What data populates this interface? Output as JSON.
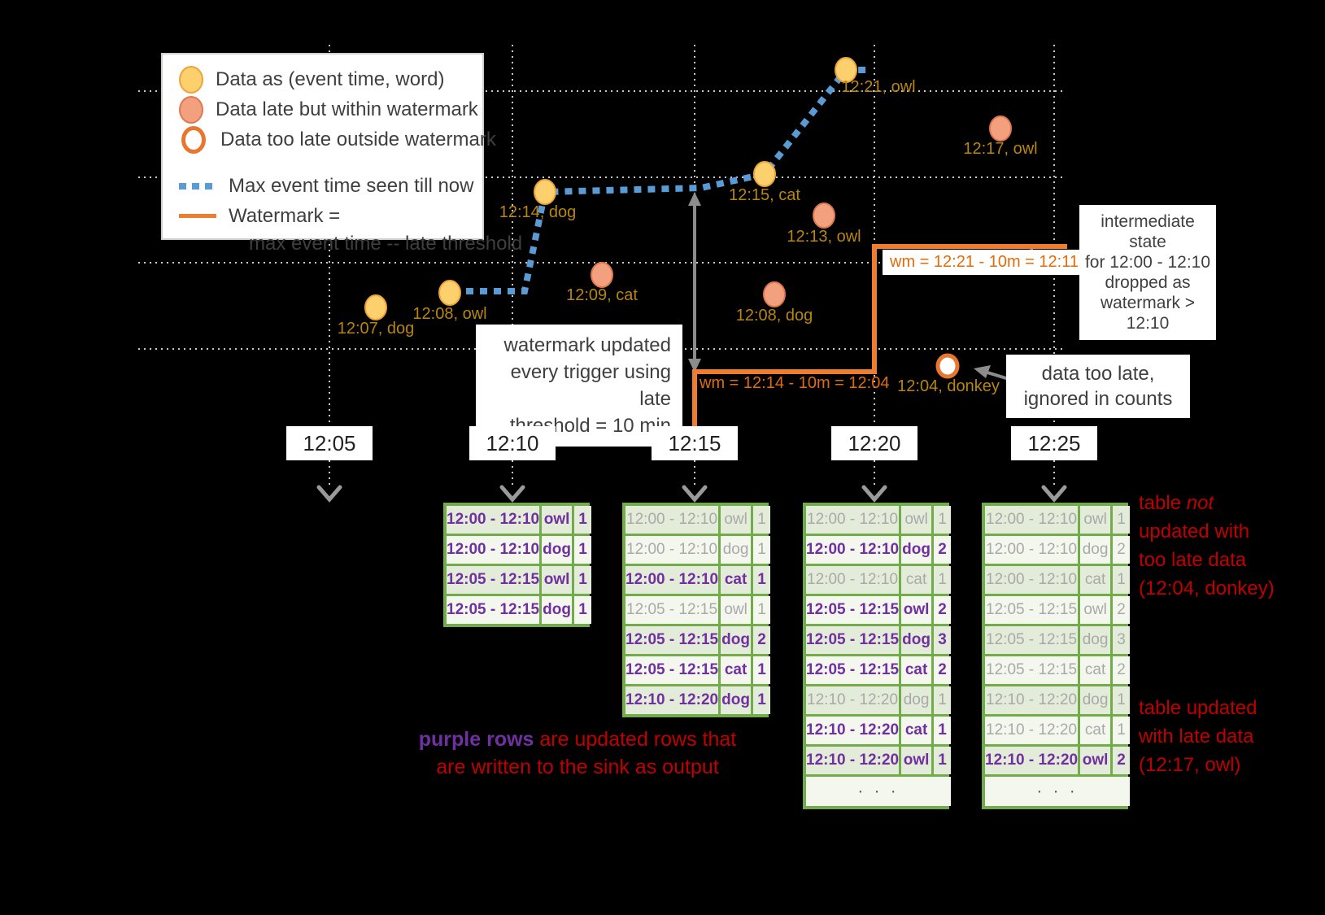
{
  "legend": {
    "items": [
      {
        "icon": "on-time-dot",
        "label": "Data as (event time, word)"
      },
      {
        "icon": "late-dot",
        "label": "Data late but within watermark"
      },
      {
        "icon": "too-late-ring",
        "label": "Data too late outside watermark"
      }
    ],
    "max_event_label": "Max event time seen till now",
    "watermark_label": "Watermark =",
    "watermark_label2": "max event time -- late threshold"
  },
  "axis_ticks": [
    "12:05",
    "12:10",
    "12:15",
    "12:20",
    "12:25"
  ],
  "points": [
    {
      "label": "12:07, dog",
      "type": "on-time"
    },
    {
      "label": "12:08, owl",
      "type": "on-time"
    },
    {
      "label": "12:14, dog",
      "type": "on-time"
    },
    {
      "label": "12:09, cat",
      "type": "late"
    },
    {
      "label": "12:15, cat",
      "type": "on-time"
    },
    {
      "label": "12:13, owl",
      "type": "late"
    },
    {
      "label": "12:08, dog",
      "type": "late"
    },
    {
      "label": "12:21, owl",
      "type": "on-time"
    },
    {
      "label": "12:17, owl",
      "type": "late"
    },
    {
      "label": "12:04, donkey",
      "type": "too-late"
    }
  ],
  "watermark_labels": {
    "wm1": "wm = 12:14 - 10m = 12:04",
    "wm2": "wm = 12:21 - 10m = 12:11"
  },
  "callouts": {
    "watermark_updated": {
      "lines": [
        "watermark updated",
        "every trigger using late",
        "threshold = 10 min"
      ]
    },
    "intermediate": {
      "lines": [
        "intermediate state",
        "for 12:00 - 12:10",
        "dropped as",
        "watermark > 12:10"
      ]
    },
    "too_late": {
      "lines": [
        "data too late,",
        "ignored in counts"
      ]
    }
  },
  "annotations": {
    "not_updated": {
      "l1a": "table ",
      "l1b": "not",
      "l2": "updated with",
      "l3": "too late data",
      "l4": "(12:04, donkey)"
    },
    "updated": {
      "l1": "table updated",
      "l2": "with late data",
      "l3": "(12:17, owl)"
    },
    "purple_note": {
      "purple": "purple rows",
      "rest1": " are updated rows that",
      "rest2": "are written to the sink as output"
    }
  },
  "ellipsis_label": "· · ·",
  "tables": [
    {
      "tick": "12:10",
      "ellipsis": false,
      "rows": [
        {
          "window": "12:00 - 12:10",
          "word": "owl",
          "count": "1",
          "updated": true
        },
        {
          "window": "12:00 - 12:10",
          "word": "dog",
          "count": "1",
          "updated": true
        },
        {
          "window": "12:05 - 12:15",
          "word": "owl",
          "count": "1",
          "updated": true
        },
        {
          "window": "12:05 - 12:15",
          "word": "dog",
          "count": "1",
          "updated": true
        }
      ]
    },
    {
      "tick": "12:15",
      "ellipsis": false,
      "rows": [
        {
          "window": "12:00 - 12:10",
          "word": "owl",
          "count": "1",
          "updated": false
        },
        {
          "window": "12:00 - 12:10",
          "word": "dog",
          "count": "1",
          "updated": false
        },
        {
          "window": "12:00 - 12:10",
          "word": "cat",
          "count": "1",
          "updated": true
        },
        {
          "window": "12:05 - 12:15",
          "word": "owl",
          "count": "1",
          "updated": false
        },
        {
          "window": "12:05 - 12:15",
          "word": "dog",
          "count": "2",
          "updated": true
        },
        {
          "window": "12:05 - 12:15",
          "word": "cat",
          "count": "1",
          "updated": true
        },
        {
          "window": "12:10 - 12:20",
          "word": "dog",
          "count": "1",
          "updated": true
        }
      ]
    },
    {
      "tick": "12:20",
      "ellipsis": true,
      "rows": [
        {
          "window": "12:00 - 12:10",
          "word": "owl",
          "count": "1",
          "updated": false
        },
        {
          "window": "12:00 - 12:10",
          "word": "dog",
          "count": "2",
          "updated": true
        },
        {
          "window": "12:00 - 12:10",
          "word": "cat",
          "count": "1",
          "updated": false
        },
        {
          "window": "12:05 - 12:15",
          "word": "owl",
          "count": "2",
          "updated": true
        },
        {
          "window": "12:05 - 12:15",
          "word": "dog",
          "count": "3",
          "updated": true
        },
        {
          "window": "12:05 - 12:15",
          "word": "cat",
          "count": "2",
          "updated": true
        },
        {
          "window": "12:10 - 12:20",
          "word": "dog",
          "count": "1",
          "updated": false
        },
        {
          "window": "12:10 - 12:20",
          "word": "cat",
          "count": "1",
          "updated": true
        },
        {
          "window": "12:10 - 12:20",
          "word": "owl",
          "count": "1",
          "updated": true
        }
      ]
    },
    {
      "tick": "12:25",
      "ellipsis": true,
      "rows": [
        {
          "window": "12:00 - 12:10",
          "word": "owl",
          "count": "1",
          "updated": false
        },
        {
          "window": "12:00 - 12:10",
          "word": "dog",
          "count": "2",
          "updated": false
        },
        {
          "window": "12:00 - 12:10",
          "word": "cat",
          "count": "1",
          "updated": false
        },
        {
          "window": "12:05 - 12:15",
          "word": "owl",
          "count": "2",
          "updated": false
        },
        {
          "window": "12:05 - 12:15",
          "word": "dog",
          "count": "3",
          "updated": false
        },
        {
          "window": "12:05 - 12:15",
          "word": "cat",
          "count": "2",
          "updated": false
        },
        {
          "window": "12:10 - 12:20",
          "word": "dog",
          "count": "1",
          "updated": false
        },
        {
          "window": "12:10 - 12:20",
          "word": "cat",
          "count": "1",
          "updated": false
        },
        {
          "window": "12:10 - 12:20",
          "word": "owl",
          "count": "2",
          "updated": true
        }
      ]
    }
  ],
  "colors": {
    "on_time": "#fcd06c",
    "late": "#f2a07e",
    "too_late_ring": "#e8762d",
    "max_event_line": "#5b9bd5",
    "watermark_line": "#ed7d31",
    "table_green": "#72ac4a",
    "updated_purple": "#7030a0",
    "stale_gray": "#a9a9a9",
    "note_red": "#c00000",
    "event_label": "#b8860b"
  }
}
